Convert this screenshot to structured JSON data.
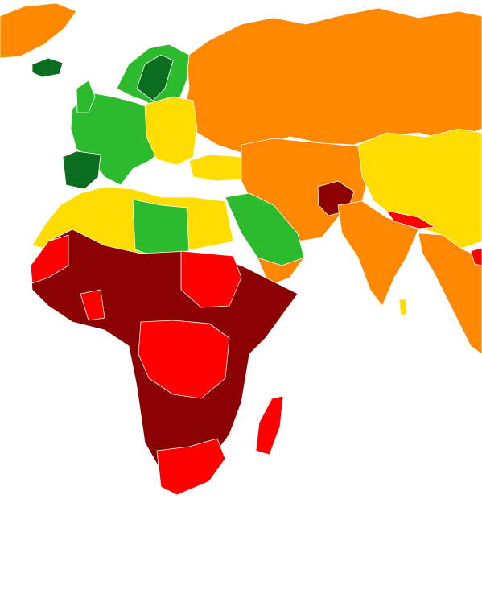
{
  "map": {
    "palette": [
      "#0a6e1e",
      "#2cbb2c",
      "#ffdd00",
      "#ff8800",
      "#ff0000",
      "#8b0000"
    ]
  }
}
